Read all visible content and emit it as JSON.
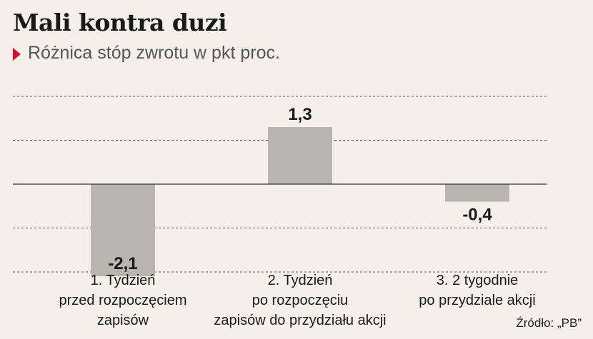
{
  "header": {
    "title": "Mali kontra duzi",
    "subtitle": "Różnica stóp zwrotu w pkt proc."
  },
  "source": "Źródło: „PB”",
  "colors": {
    "bar": "#b8b5ae",
    "accent": "#d2112a",
    "background": "#f4f0e9"
  },
  "chart_data": {
    "type": "bar",
    "title": "Mali kontra duzi",
    "subtitle": "Różnica stóp zwrotu w pkt proc.",
    "categories": [
      "1. Tydzień\nprzed rozpoczęciem\nzapisów",
      "2. Tydzień\npo rozpoczęciu\nzapisów do przydziału akcji",
      "3. 2 tygodnie\npo przydziale akcji"
    ],
    "values": [
      -2.1,
      1.3,
      -0.4
    ],
    "value_labels": [
      "-2,1",
      "1,3",
      "-0,4"
    ],
    "ylim": [
      -2,
      2
    ],
    "grid": true,
    "xlabel": "",
    "ylabel": ""
  }
}
